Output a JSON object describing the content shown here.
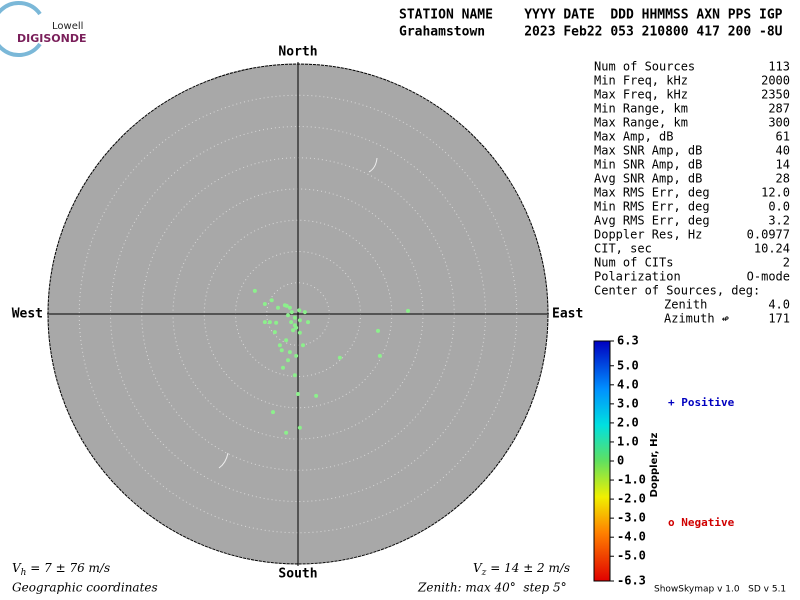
{
  "header": {
    "logo_top": "Lowell",
    "logo_bottom": "DIGISONDE",
    "line1": "STATION NAME    YYYY DATE  DDD HHMMSS AXN PPS IGP",
    "line2": "Grahamstown     2023 Feb22 053 210800 417 200 -8U"
  },
  "stats": [
    [
      "Num of Sources",
      "113"
    ],
    [
      "Min Freq, kHz",
      "2000"
    ],
    [
      "Max Freq, kHz",
      "2350"
    ],
    [
      "Min Range, km",
      "287"
    ],
    [
      "Max Range, km",
      "300"
    ],
    [
      "Max Amp, dB",
      "61"
    ],
    [
      "Max SNR Amp, dB",
      "40"
    ],
    [
      "Min SNR Amp, dB",
      "14"
    ],
    [
      "Avg SNR Amp, dB",
      "28"
    ],
    [
      "Max RMS Err, deg",
      "12.0"
    ],
    [
      "Min RMS Err, deg",
      "0.0"
    ],
    [
      "Avg RMS Err, deg",
      "3.2"
    ],
    [
      "Doppler Res, Hz",
      "0.0977"
    ],
    [
      "CIT, sec",
      "10.24"
    ],
    [
      "Num of CITs",
      "2"
    ],
    [
      "Polarization",
      "O-mode"
    ]
  ],
  "center": {
    "title": "Center of Sources, deg:",
    "zenith_label": "Zenith",
    "zenith": "4.0",
    "azimuth_label": "Azimuth ↫",
    "azimuth": "171"
  },
  "legend": {
    "positive": "+ Positive",
    "negative": "o Negative"
  },
  "footer": {
    "vh_v": "V",
    "vh_sub": "h",
    "vh_rest": " = 7 ± 76 m/s",
    "vz_v": "V",
    "vz_sub": "z",
    "vz_rest": " = 14 ± 2 m/s",
    "coords": "Geographic coordinates",
    "zenith": "Zenith: max 40°  step 5°",
    "version": "ShowSkymap v 1.0   SD v 5.1"
  },
  "chart_data": {
    "type": "skymap",
    "directions": {
      "north": "North",
      "south": "South",
      "west": "West",
      "east": "East"
    },
    "rlim": [
      0,
      40
    ],
    "rings": [
      5,
      10,
      15,
      20,
      25,
      30,
      35,
      40
    ],
    "color": "#8cf08c",
    "east": [
      -6.9,
      -5.3,
      -4.2,
      -3.2,
      -2.1,
      -1.6,
      -1.1,
      -0.5,
      0.3,
      1.1,
      1.6,
      -0.8,
      -1.9,
      -2.9,
      -1.3,
      -0.3,
      -2.4,
      -0.5,
      0,
      2.9,
      -4.0,
      0.3,
      -1.9,
      6.7,
      12.8,
      13.1,
      17.6,
      -1.8,
      -0.3,
      -3.5,
      -4.5,
      -3.7,
      -2.6,
      -1.6,
      -1.3,
      0.3,
      0.8,
      -0.5,
      -1.0,
      0.2,
      -5.3
    ],
    "north": [
      3.7,
      1.6,
      2.2,
      1.0,
      1.4,
      -0.2,
      -1.3,
      -1.8,
      -1.0,
      0.3,
      -1.3,
      -2.6,
      -4.2,
      -5.0,
      -6.1,
      -6.7,
      -8.6,
      -9.8,
      -12.8,
      -13.1,
      -15.7,
      -18.2,
      -19.0,
      -7.0,
      -2.7,
      -6.7,
      0.5,
      1.3,
      -2.2,
      -1.4,
      -1.3,
      -2.9,
      -5.8,
      -7.4,
      1.0,
      -3.0,
      -5.0,
      -0.6,
      0.3,
      0.6,
      -1.3
    ],
    "colorbar": {
      "label": "Doppler, Hz",
      "lim": [
        -6.3,
        6.3
      ],
      "ticks": [
        6.3,
        {
          "value": 5,
          "label": "5.0"
        },
        {
          "value": 4,
          "label": "4.0"
        },
        {
          "value": 3,
          "label": "3.0"
        },
        {
          "value": 2,
          "label": "2.0"
        },
        {
          "value": 1,
          "label": "1.0"
        },
        0,
        {
          "value": -1,
          "label": "-1.0"
        },
        {
          "value": -2,
          "label": "-2.0"
        },
        {
          "value": -3,
          "label": "-3.0"
        },
        {
          "value": -4,
          "label": "-4.0"
        },
        {
          "value": -5,
          "label": "-5.0"
        },
        -6.3
      ]
    }
  }
}
